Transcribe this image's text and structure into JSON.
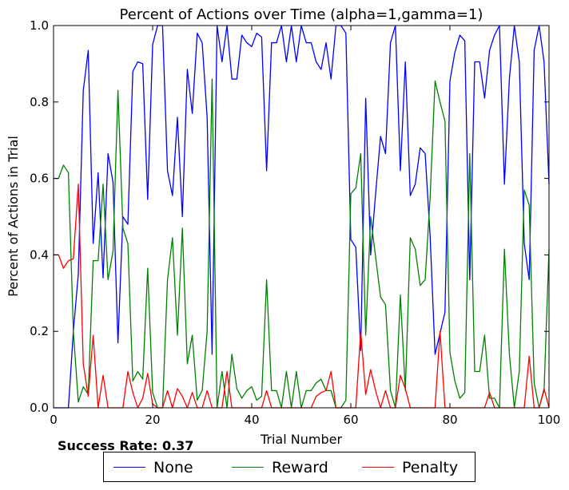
{
  "chart_data": {
    "type": "line",
    "title": "Percent of Actions over Time (alpha=1,gamma=1)",
    "xlabel": "Trial Number",
    "ylabel": "Percent of Actions in Trial",
    "xlim": [
      0,
      100
    ],
    "ylim": [
      0,
      1
    ],
    "xticks": [
      "0",
      "20",
      "40",
      "60",
      "80",
      "100"
    ],
    "yticks": [
      "0.0",
      "0.2",
      "0.4",
      "0.6",
      "0.8",
      "1.0"
    ],
    "grid": false,
    "legend_position": "bottom-center",
    "x": [
      0,
      1,
      2,
      3,
      4,
      5,
      6,
      7,
      8,
      9,
      10,
      11,
      12,
      13,
      14,
      15,
      16,
      17,
      18,
      19,
      20,
      21,
      22,
      23,
      24,
      25,
      26,
      27,
      28,
      29,
      30,
      31,
      32,
      33,
      34,
      35,
      36,
      37,
      38,
      39,
      40,
      41,
      42,
      43,
      44,
      45,
      46,
      47,
      48,
      49,
      50,
      51,
      52,
      53,
      54,
      55,
      56,
      57,
      58,
      59,
      60,
      61,
      62,
      63,
      64,
      65,
      66,
      67,
      68,
      69,
      70,
      71,
      72,
      73,
      74,
      75,
      76,
      77,
      78,
      79,
      80,
      81,
      82,
      83,
      84,
      85,
      86,
      87,
      88,
      89,
      90,
      91,
      92,
      93,
      94,
      95,
      96,
      97,
      98,
      99,
      100
    ],
    "series": [
      {
        "name": "None",
        "color": "#0000ff",
        "values": [
          0,
          0,
          0,
          0,
          0.2,
          0.35,
          0.83,
          0.935,
          0.43,
          0.615,
          0.34,
          0.665,
          0.59,
          0.17,
          0.5,
          0.48,
          0.88,
          0.905,
          0.9,
          0.545,
          0.95,
          1,
          1,
          0.62,
          0.555,
          0.76,
          0.5,
          0.885,
          0.77,
          0.98,
          0.955,
          0.76,
          0.14,
          1,
          0.905,
          1,
          0.86,
          0.86,
          0.975,
          0.955,
          0.945,
          0.98,
          0.97,
          0.62,
          0.955,
          0.955,
          1,
          0.905,
          1,
          0.905,
          1,
          0.955,
          0.955,
          0.905,
          0.885,
          0.955,
          0.86,
          1,
          1,
          0.98,
          0.44,
          0.42,
          0.15,
          0.81,
          0.4,
          0.56,
          0.71,
          0.665,
          0.955,
          1,
          0.62,
          0.905,
          0.555,
          0.585,
          0.68,
          0.665,
          0.45,
          0.14,
          0.195,
          0.25,
          0.855,
          0.93,
          0.975,
          0.96,
          0.335,
          0.905,
          0.905,
          0.81,
          0.935,
          0.975,
          1,
          0.585,
          0.86,
          1,
          0.905,
          0.43,
          0.335,
          0.935,
          1,
          0.905,
          0.585
        ]
      },
      {
        "name": "Reward",
        "color": "#008000",
        "values": [
          0.6,
          0.6,
          0.635,
          0.615,
          0.2,
          0.015,
          0.055,
          0.035,
          0.385,
          0.385,
          0.585,
          0.335,
          0.41,
          0.83,
          0.47,
          0.43,
          0.07,
          0.095,
          0.075,
          0.365,
          0.04,
          0,
          0,
          0.335,
          0.445,
          0.19,
          0.47,
          0.115,
          0.19,
          0.02,
          0.045,
          0.2,
          0.86,
          0,
          0.095,
          0,
          0.14,
          0.05,
          0.025,
          0.045,
          0.055,
          0.02,
          0.03,
          0.335,
          0.045,
          0.045,
          0,
          0.095,
          0,
          0.095,
          0,
          0.045,
          0.045,
          0.065,
          0.075,
          0.045,
          0.045,
          0,
          0,
          0.02,
          0.56,
          0.575,
          0.665,
          0.19,
          0.5,
          0.395,
          0.29,
          0.27,
          0.045,
          0,
          0.295,
          0.045,
          0.445,
          0.415,
          0.32,
          0.335,
          0.55,
          0.855,
          0.8,
          0.75,
          0.145,
          0.07,
          0.025,
          0.04,
          0.665,
          0.095,
          0.095,
          0.19,
          0.025,
          0.025,
          0,
          0.415,
          0.14,
          0,
          0.095,
          0.57,
          0.53,
          0.065,
          0,
          0.045,
          0.415
        ]
      },
      {
        "name": "Penalty",
        "color": "#ff0000",
        "values": [
          0.4,
          0.4,
          0.365,
          0.385,
          0.39,
          0.585,
          0.115,
          0.03,
          0.19,
          0,
          0.085,
          0,
          0,
          0,
          0,
          0.095,
          0.04,
          0,
          0.025,
          0.09,
          0.01,
          0,
          0,
          0.045,
          0,
          0.05,
          0.03,
          0,
          0.04,
          0,
          0,
          0.045,
          0,
          0,
          0,
          0.095,
          0,
          0,
          0,
          0,
          0,
          0,
          0,
          0.045,
          0,
          0,
          0,
          0,
          0,
          0,
          0,
          0,
          0,
          0.03,
          0.04,
          0.045,
          0.095,
          0,
          0,
          0,
          0,
          0,
          0.2,
          0.035,
          0.1,
          0.045,
          0,
          0.045,
          0,
          0,
          0.085,
          0.05,
          0,
          0,
          0,
          0,
          0,
          0,
          0.2,
          0,
          0,
          0,
          0,
          0,
          0,
          0,
          0,
          0,
          0.04,
          0,
          0,
          0,
          0,
          0,
          0,
          0,
          0.135,
          0,
          0,
          0.05,
          0
        ]
      }
    ]
  },
  "success_rate": {
    "text": "Success Rate: 0.37"
  }
}
